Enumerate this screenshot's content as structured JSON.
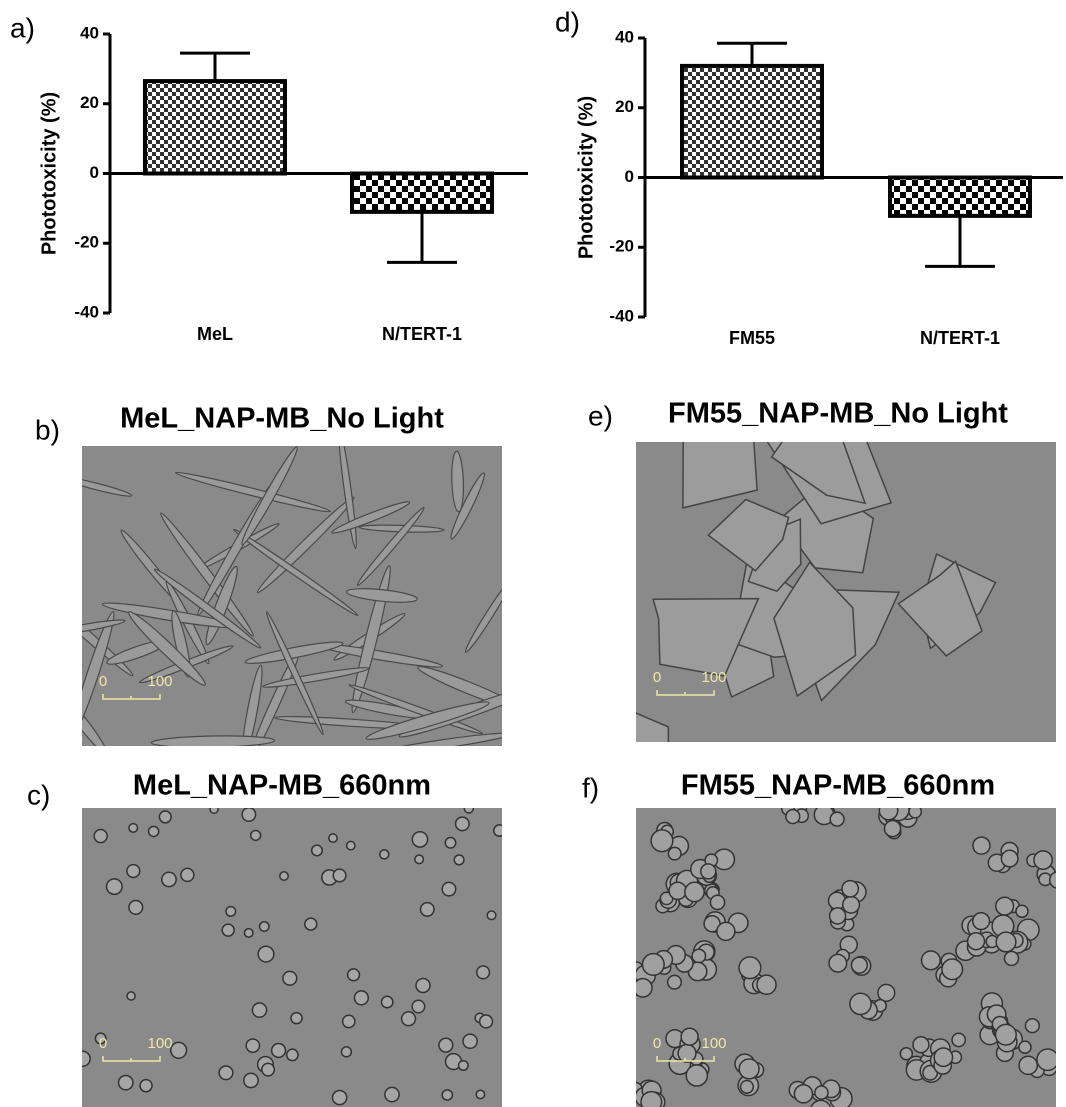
{
  "chart_data": [
    {
      "type": "bar",
      "panel_label": "a)",
      "y_label": "Phototoxicity (%)",
      "categories": [
        "MeL",
        "N/TERT-1"
      ],
      "values": [
        26.5,
        -11
      ],
      "errors": [
        8,
        14.5
      ],
      "ylim": [
        -40,
        40
      ],
      "yticks": [
        -40,
        -20,
        0,
        20,
        40
      ],
      "color": "#000000"
    },
    {
      "type": "bar",
      "panel_label": "d)",
      "y_label": "Phototoxicity (%)",
      "categories": [
        "FM55",
        "N/TERT-1"
      ],
      "values": [
        32,
        -11
      ],
      "errors": [
        6.5,
        14.5
      ],
      "ylim": [
        -40,
        40
      ],
      "yticks": [
        -40,
        -20,
        0,
        20,
        40
      ],
      "color": "#000000"
    }
  ],
  "images": [
    {
      "panel_label": "b)",
      "title": "MeL_NAP-MB_No Light",
      "scale_labels": [
        "0",
        "100"
      ]
    },
    {
      "panel_label": "c)",
      "title": "MeL_NAP-MB_660nm",
      "scale_labels": [
        "0",
        "100"
      ]
    },
    {
      "panel_label": "e)",
      "title": "FM55_NAP-MB_No Light",
      "scale_labels": [
        "0",
        "100"
      ]
    },
    {
      "panel_label": "f)",
      "title": "FM55_NAP-MB_660nm",
      "scale_labels": [
        "0",
        "100"
      ]
    }
  ]
}
